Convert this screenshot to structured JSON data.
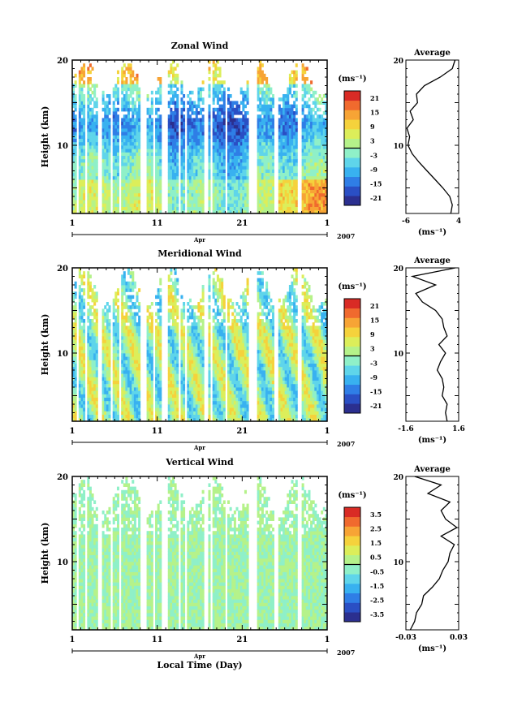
{
  "x_axis": {
    "ticks": [
      "1",
      "11",
      "21",
      "1"
    ],
    "month": "Apr",
    "year": "2007",
    "label": "Local Time (Day)"
  },
  "colorbar_unit": "(ms⁻¹)",
  "profile_title": "Average",
  "profile_unit": "(ms⁻¹)",
  "y_axis": {
    "label": "Height (km)",
    "ticks": [
      "10",
      "20"
    ]
  },
  "palette": [
    "#2b2f8f",
    "#2a4fc4",
    "#2f7ee6",
    "#38b1f0",
    "#5fd5ea",
    "#8ff0c8",
    "#b5f28a",
    "#dcee5a",
    "#f5d23c",
    "#f7a435",
    "#f06a2e",
    "#d92b25"
  ],
  "chart_data": [
    {
      "type": "heatmap",
      "title": "Zonal Wind",
      "ylabel": "Height (km)",
      "ylim": [
        2,
        20
      ],
      "colorbar": {
        "ticks": [
          "21",
          "15",
          "9",
          "3",
          "-3",
          "-9",
          "-15",
          "-21"
        ],
        "range": [
          -24,
          24
        ]
      },
      "profile": {
        "title": "Average",
        "xlabel": "(ms⁻¹)",
        "xticks": [
          "-6",
          "4"
        ],
        "xlim": [
          -6,
          4
        ],
        "height": [
          2,
          3,
          4,
          5,
          6,
          7,
          8,
          9,
          10,
          11,
          12,
          13,
          14,
          15,
          16,
          17,
          18,
          19,
          20
        ],
        "value": [
          2.5,
          2.8,
          2.3,
          1.0,
          -0.5,
          -2.0,
          -3.5,
          -4.8,
          -5.6,
          -5.3,
          -5.8,
          -4.6,
          -5.2,
          -3.8,
          -4.0,
          -2.5,
          0.5,
          2.8,
          3.3
        ]
      }
    },
    {
      "type": "heatmap",
      "title": "Meridional Wind",
      "ylabel": "Height (km)",
      "ylim": [
        2,
        20
      ],
      "colorbar": {
        "ticks": [
          "21",
          "15",
          "9",
          "3",
          "-3",
          "-9",
          "-15",
          "-21"
        ],
        "range": [
          -24,
          24
        ]
      },
      "profile": {
        "title": "Average",
        "xlabel": "(ms⁻¹)",
        "xticks": [
          "-1.6",
          "1.6"
        ],
        "xlim": [
          -1.6,
          1.6
        ],
        "height": [
          2,
          3,
          4,
          5,
          6,
          7,
          8,
          9,
          10,
          11,
          12,
          13,
          14,
          15,
          16,
          17,
          18,
          19,
          20
        ],
        "value": [
          0.9,
          0.8,
          0.9,
          0.6,
          0.7,
          0.6,
          0.3,
          0.5,
          0.8,
          0.4,
          0.9,
          0.7,
          0.6,
          0.2,
          -0.6,
          -1.0,
          0.2,
          -1.2,
          1.4
        ]
      }
    },
    {
      "type": "heatmap",
      "title": "Vertical Wind",
      "ylabel": "Height (km)",
      "ylim": [
        2,
        20
      ],
      "colorbar": {
        "ticks": [
          "3.5",
          "2.5",
          "1.5",
          "0.5",
          "-0.5",
          "-1.5",
          "-2.5",
          "-3.5"
        ],
        "range": [
          -4,
          4
        ]
      },
      "profile": {
        "title": "Average",
        "xlabel": "(ms⁻¹)",
        "xticks": [
          "-0.03",
          "0.03"
        ],
        "xlim": [
          -0.03,
          0.03
        ],
        "height": [
          2,
          3,
          4,
          5,
          6,
          7,
          8,
          9,
          10,
          11,
          12,
          13,
          14,
          15,
          16,
          17,
          18,
          19,
          20
        ],
        "value": [
          -0.025,
          -0.02,
          -0.018,
          -0.012,
          -0.01,
          0.0,
          0.008,
          0.012,
          0.018,
          0.02,
          0.025,
          0.01,
          0.028,
          0.015,
          0.01,
          0.02,
          -0.005,
          0.01,
          -0.02
        ]
      }
    }
  ]
}
